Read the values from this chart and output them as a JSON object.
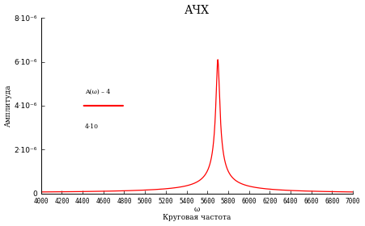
{
  "title": "АЧХ",
  "xlabel": "ω\nКруговая частота",
  "ylabel": "Амплитуда",
  "xmin": 4000,
  "xmax": 7000,
  "ymin": 0,
  "ymax": 8e-06,
  "resonance_freq": 5700,
  "resonance_amp": 6.1e-06,
  "damping": 0.003,
  "line_color": "#ff0000",
  "bg_color": "#ffffff",
  "xticks": [
    4000,
    4200,
    4400,
    4600,
    4800,
    5000,
    5200,
    5400,
    5600,
    5800,
    6000,
    6200,
    6400,
    6600,
    6800,
    7000
  ],
  "yticks": [
    0,
    2e-06,
    4e-06,
    6e-06,
    8e-06
  ],
  "ytick_labels": [
    "0",
    "2·10⁻⁶",
    "4·10⁻⁶",
    "6·10⁻⁶",
    "8·10⁻⁶"
  ]
}
